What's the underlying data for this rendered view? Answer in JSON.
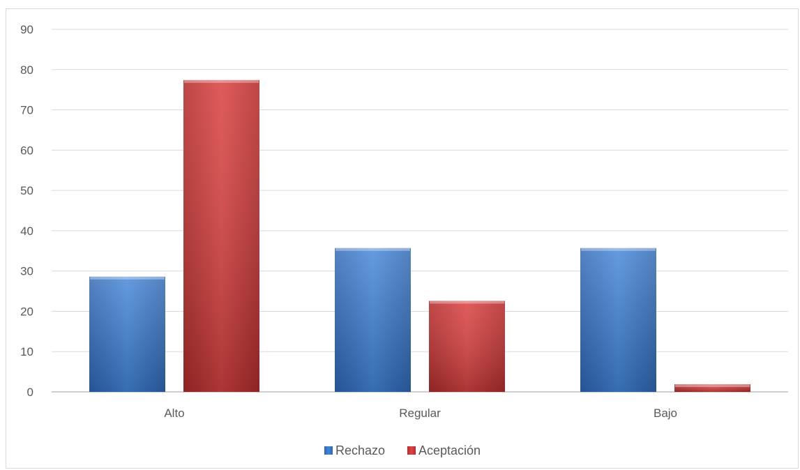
{
  "chart_data": {
    "type": "bar",
    "categories": [
      "Alto",
      "Regular",
      "Bajo"
    ],
    "series": [
      {
        "name": "Rechazo",
        "values": [
          28.6,
          35.7,
          35.7
        ]
      },
      {
        "name": "Aceptación",
        "values": [
          77.4,
          22.6,
          1.9
        ]
      }
    ],
    "ylim": [
      0,
      90
    ],
    "yticks": [
      0,
      10,
      20,
      30,
      40,
      50,
      60,
      70,
      80,
      90
    ],
    "grid": true,
    "legend_position": "bottom",
    "colors": {
      "Rechazo": "#3f7fd0",
      "Aceptación": "#d33f3f"
    }
  }
}
